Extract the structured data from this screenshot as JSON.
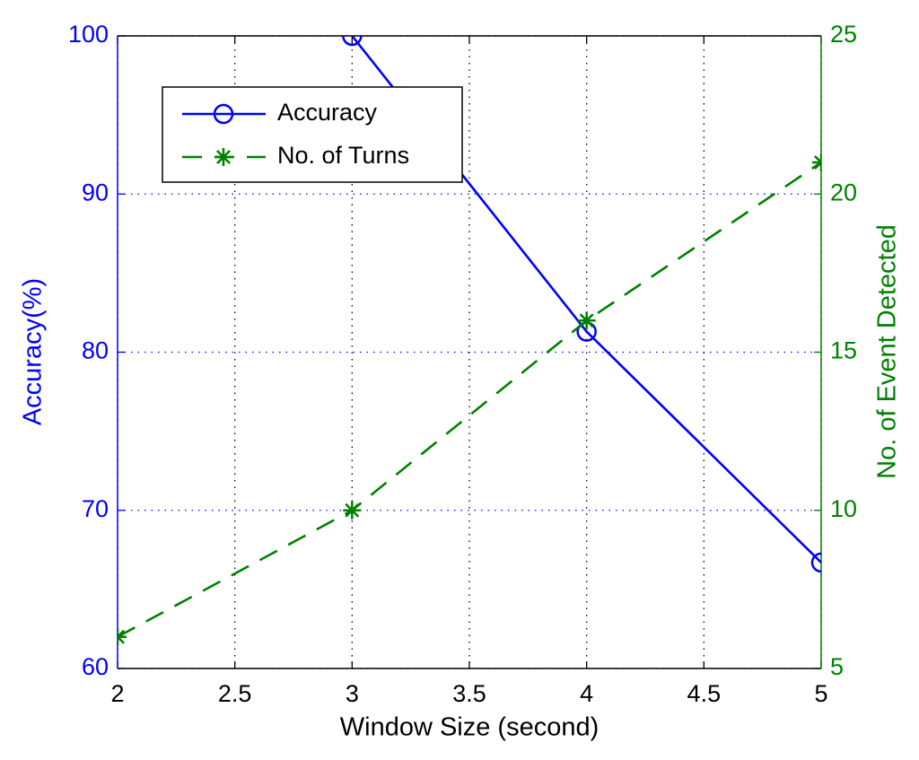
{
  "chart_data": {
    "type": "line",
    "x_label": "Window Size (second)",
    "y_label": "Accuracy(%)",
    "y2_label": "No. of Event Detected",
    "x": [
      2,
      3,
      4,
      5
    ],
    "series": [
      {
        "name": "Accuracy",
        "color": "#0000ff",
        "marker": "circle",
        "dash": "solid",
        "values": [
          null,
          100,
          81.3,
          66.7
        ]
      },
      {
        "name": "No. of Turns",
        "color": "#008000",
        "marker": "star",
        "dash": "dashed",
        "axis": "y2",
        "values": [
          6,
          10,
          16,
          21
        ]
      }
    ],
    "xlim": [
      2,
      5
    ],
    "xticks": [
      2,
      2.5,
      3,
      3.5,
      4,
      4.5,
      5
    ],
    "ylim": [
      60,
      100
    ],
    "yticks": [
      60,
      70,
      80,
      90,
      100
    ],
    "y2lim": [
      5,
      25
    ],
    "y2ticks": [
      5,
      10,
      15,
      20,
      25
    ],
    "grid": true,
    "legend": "upper left"
  }
}
